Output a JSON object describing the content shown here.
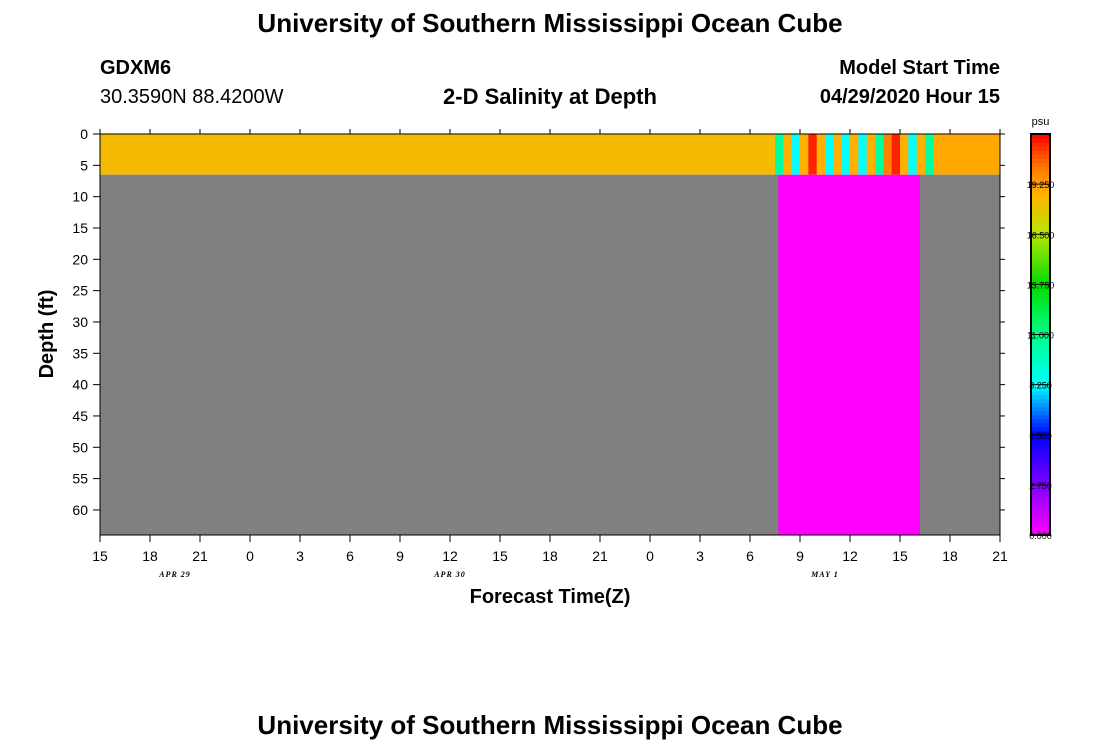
{
  "header": {
    "title": "University of Southern Mississippi Ocean Cube",
    "footer_title": "University of Southern Mississippi Ocean Cube",
    "station_id": "GDXM6",
    "coordinates": "30.3590N 88.4200W",
    "model_start_label": "Model Start Time",
    "model_start_value": "04/29/2020 Hour 15"
  },
  "chart_data": {
    "type": "heatmap",
    "title": "2-D Salinity at Depth",
    "xlabel": "Forecast Time(Z)",
    "ylabel": "Depth (ft)",
    "x_range_hours": [
      0,
      54
    ],
    "y_range_ft": [
      0,
      64
    ],
    "x_ticks": [
      {
        "hour": 0,
        "label": "15"
      },
      {
        "hour": 3,
        "label": "18"
      },
      {
        "hour": 6,
        "label": "21"
      },
      {
        "hour": 9,
        "label": "0"
      },
      {
        "hour": 12,
        "label": "3"
      },
      {
        "hour": 15,
        "label": "6"
      },
      {
        "hour": 18,
        "label": "9"
      },
      {
        "hour": 21,
        "label": "12"
      },
      {
        "hour": 24,
        "label": "15"
      },
      {
        "hour": 27,
        "label": "18"
      },
      {
        "hour": 30,
        "label": "21"
      },
      {
        "hour": 33,
        "label": "0"
      },
      {
        "hour": 36,
        "label": "3"
      },
      {
        "hour": 39,
        "label": "6"
      },
      {
        "hour": 42,
        "label": "9"
      },
      {
        "hour": 45,
        "label": "12"
      },
      {
        "hour": 48,
        "label": "15"
      },
      {
        "hour": 51,
        "label": "18"
      },
      {
        "hour": 54,
        "label": "21"
      }
    ],
    "date_labels": [
      {
        "hour": 4.5,
        "label": "APR 29"
      },
      {
        "hour": 21,
        "label": "APR 30"
      },
      {
        "hour": 43.5,
        "label": "MAY 1"
      }
    ],
    "y_ticks": [
      0,
      5,
      10,
      15,
      20,
      25,
      30,
      35,
      40,
      45,
      50,
      55,
      60
    ],
    "surface_layer": {
      "depth_range_ft": [
        0,
        6.5
      ],
      "segments": [
        {
          "hour_start": 0,
          "hour_end": 40.5,
          "salinity": 18.4
        },
        {
          "hour_start": 40.5,
          "hour_end": 41.0,
          "salinity": 10.5
        },
        {
          "hour_start": 41.0,
          "hour_end": 41.5,
          "salinity": 18.8
        },
        {
          "hour_start": 41.5,
          "hour_end": 42.0,
          "salinity": 8.3
        },
        {
          "hour_start": 42.0,
          "hour_end": 42.5,
          "salinity": 18.8
        },
        {
          "hour_start": 42.5,
          "hour_end": 43.0,
          "salinity": 21.5
        },
        {
          "hour_start": 43.0,
          "hour_end": 43.5,
          "salinity": 18.8
        },
        {
          "hour_start": 43.5,
          "hour_end": 44.0,
          "salinity": 8.3
        },
        {
          "hour_start": 44.0,
          "hour_end": 44.5,
          "salinity": 18.8
        },
        {
          "hour_start": 44.5,
          "hour_end": 45.0,
          "salinity": 8.3
        },
        {
          "hour_start": 45.0,
          "hour_end": 45.5,
          "salinity": 18.8
        },
        {
          "hour_start": 45.5,
          "hour_end": 46.0,
          "salinity": 8.3
        },
        {
          "hour_start": 46.0,
          "hour_end": 46.5,
          "salinity": 18.8
        },
        {
          "hour_start": 46.5,
          "hour_end": 47.0,
          "salinity": 10.5
        },
        {
          "hour_start": 47.0,
          "hour_end": 47.5,
          "salinity": 20.0
        },
        {
          "hour_start": 47.5,
          "hour_end": 48.0,
          "salinity": 21.5
        },
        {
          "hour_start": 48.0,
          "hour_end": 48.5,
          "salinity": 18.8
        },
        {
          "hour_start": 48.5,
          "hour_end": 49.0,
          "salinity": 8.3
        },
        {
          "hour_start": 49.0,
          "hour_end": 49.5,
          "salinity": 18.8
        },
        {
          "hour_start": 49.5,
          "hour_end": 50.0,
          "salinity": 10.5
        },
        {
          "hour_start": 50.0,
          "hour_end": 54,
          "salinity": 19.0
        }
      ]
    },
    "deep_region": {
      "depth_range_ft": [
        6.5,
        64
      ],
      "segments": [
        {
          "hour_start": 0,
          "hour_end": 40.7,
          "kind": "no-data",
          "color": "#808080"
        },
        {
          "hour_start": 40.7,
          "hour_end": 49.2,
          "kind": "value",
          "salinity": 0.0
        },
        {
          "hour_start": 49.2,
          "hour_end": 54,
          "kind": "no-data",
          "color": "#808080"
        }
      ]
    },
    "colorbar": {
      "unit": "psu",
      "min": 0,
      "max": 22,
      "tick_values": [
        0,
        2.75,
        5.5,
        8.25,
        11,
        13.75,
        16.5,
        19.25
      ],
      "tick_labels": [
        "0.000",
        "2.750",
        "5.500",
        "8.250",
        "11.000",
        "13.750",
        "16.500",
        "19.250"
      ]
    }
  }
}
